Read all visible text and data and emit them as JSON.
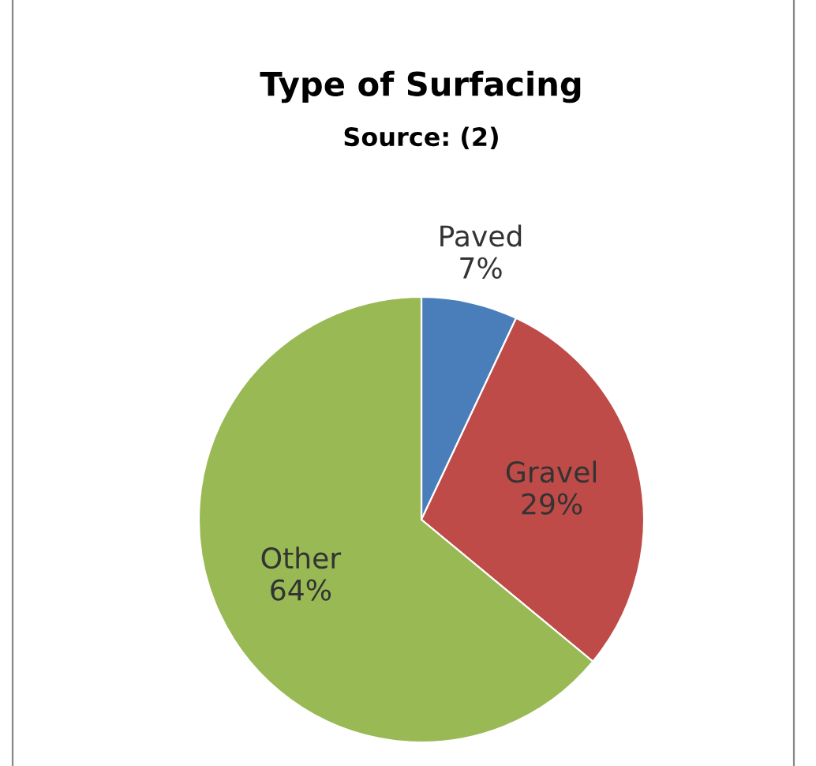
{
  "chart_data": {
    "type": "pie",
    "title": "Type of Surfacing",
    "subtitle": "Source: (2)",
    "categories": [
      "Paved",
      "Gravel",
      "Other"
    ],
    "values": [
      7,
      29,
      64
    ],
    "colors": [
      "#4a7ebb",
      "#be4b48",
      "#98b954"
    ],
    "value_labels": [
      "7%",
      "29%",
      "64%"
    ],
    "legend": false
  }
}
